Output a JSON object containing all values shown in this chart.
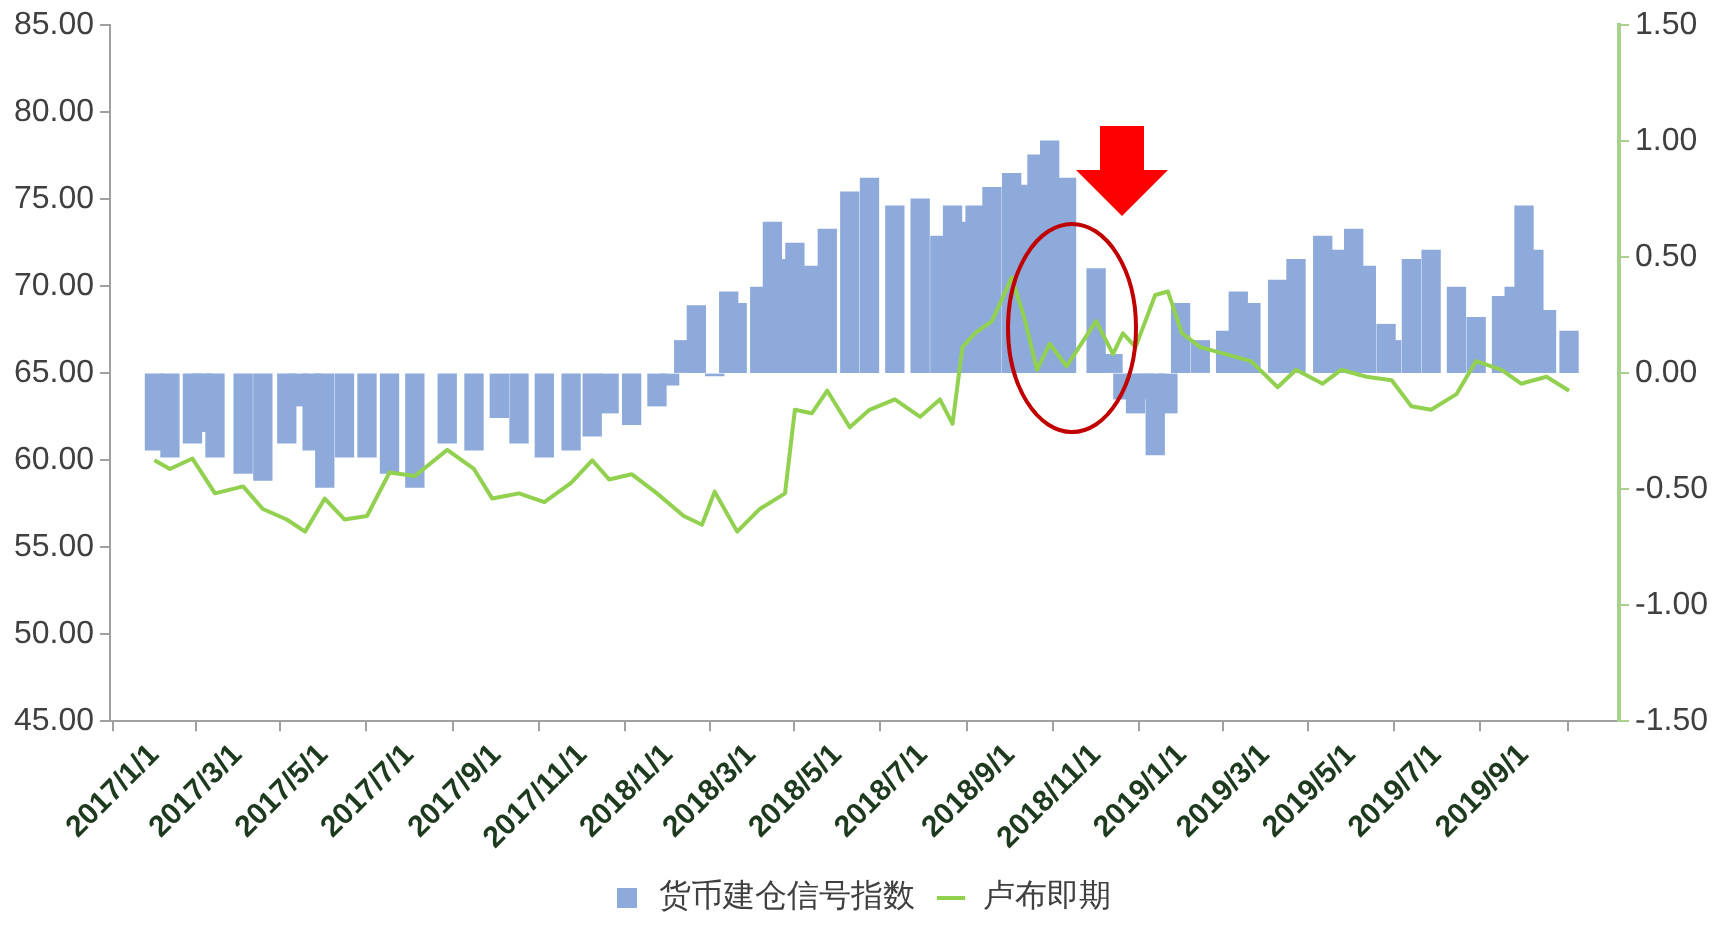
{
  "chart_data": {
    "type": "bar",
    "legend": "bottom",
    "marker": "none",
    "line_style": "solid",
    "grid": false,
    "xlim": [
      "2017-01-01",
      "2019-10-07"
    ],
    "xticks": [
      {
        "value": "2017-01-01",
        "label": "2017/1/1"
      },
      {
        "value": "2017-03-01",
        "label": "2017/3/1"
      },
      {
        "value": "2017-05-01",
        "label": "2017/5/1"
      },
      {
        "value": "2017-07-01",
        "label": "2017/7/1"
      },
      {
        "value": "2017-09-01",
        "label": "2017/9/1"
      },
      {
        "value": "2017-11-01",
        "label": "2017/11/1"
      },
      {
        "value": "2018-01-01",
        "label": "2018/1/1"
      },
      {
        "value": "2018-03-01",
        "label": "2018/3/1"
      },
      {
        "value": "2018-05-01",
        "label": "2018/5/1"
      },
      {
        "value": "2018-07-01",
        "label": "2018/7/1"
      },
      {
        "value": "2018-09-01",
        "label": "2018/9/1"
      },
      {
        "value": "2018-11-01",
        "label": "2018/11/1"
      },
      {
        "value": "2019-01-01",
        "label": "2019/1/1"
      },
      {
        "value": "2019-03-01",
        "label": "2019/3/1"
      },
      {
        "value": "2019-05-01",
        "label": "2019/5/1"
      },
      {
        "value": "2019-07-01",
        "label": "2019/7/1"
      },
      {
        "value": "2019-09-01",
        "label": "2019/9/1"
      }
    ],
    "ylim": [
      45,
      85
    ],
    "yticks": [
      {
        "value": 45,
        "label": "45.00"
      },
      {
        "value": 50,
        "label": "50.00"
      },
      {
        "value": 55,
        "label": "55.00"
      },
      {
        "value": 60,
        "label": "60.00"
      },
      {
        "value": 65,
        "label": "65.00"
      },
      {
        "value": 70,
        "label": "70.00"
      },
      {
        "value": 75,
        "label": "75.00"
      },
      {
        "value": 80,
        "label": "80.00"
      },
      {
        "value": 85,
        "label": "85.00"
      }
    ],
    "y2lim": [
      -1.5,
      1.5
    ],
    "y2ticks": [
      {
        "value": -1.5,
        "label": "-1.50"
      },
      {
        "value": -1,
        "label": "-1.00"
      },
      {
        "value": -0.5,
        "label": "-0.50"
      },
      {
        "value": 0,
        "label": "0.00"
      },
      {
        "value": 0.5,
        "label": "0.50"
      },
      {
        "value": 1,
        "label": "1.00"
      },
      {
        "value": 1.5,
        "label": "1.50"
      }
    ],
    "series": [
      {
        "name": "货币建仓信号指数",
        "axis": "y2",
        "color": "#8eaadb",
        "x": [
          "2017-01-01",
          "2017-01-12",
          "2017-01-28",
          "2017-02-04",
          "2017-02-13",
          "2017-03-05",
          "2017-03-19",
          "2017-04-05",
          "2017-04-13",
          "2017-04-23",
          "2017-05-02",
          "2017-05-16",
          "2017-06-01",
          "2017-06-17",
          "2017-07-05",
          "2017-07-28",
          "2017-08-16",
          "2017-09-03",
          "2017-09-17",
          "2017-10-05",
          "2017-10-24",
          "2017-11-08",
          "2017-11-20",
          "2017-12-06",
          "2017-12-24",
          "2018-01-02",
          "2018-01-12",
          "2018-01-21",
          "2018-02-03",
          "2018-02-13",
          "2018-02-19",
          "2018-03-07",
          "2018-03-16",
          "2018-03-25",
          "2018-04-01",
          "2018-04-13",
          "2018-04-24",
          "2018-05-10",
          "2018-05-24",
          "2018-06-11",
          "2018-06-29",
          "2018-07-13",
          "2018-07-22",
          "2018-07-29",
          "2018-08-07",
          "2018-08-19",
          "2018-09-02",
          "2018-09-11",
          "2018-09-20",
          "2018-09-29",
          "2018-10-11",
          "2018-11-01",
          "2018-11-13",
          "2018-11-20",
          "2018-11-29",
          "2018-12-05",
          "2018-12-13",
          "2018-12-22",
          "2018-12-31",
          "2019-01-14",
          "2019-02-01",
          "2019-02-10",
          "2019-02-19",
          "2019-03-10",
          "2019-03-23",
          "2019-04-11",
          "2019-04-24",
          "2019-05-03",
          "2019-05-12",
          "2019-05-26",
          "2019-05-30",
          "2019-06-13",
          "2019-06-27",
          "2019-07-15",
          "2019-07-29",
          "2019-08-16",
          "2019-08-25",
          "2019-09-01",
          "2019-09-08",
          "2019-09-17",
          "2019-10-03"
        ],
        "values": [
          -0.33,
          -0.36,
          -0.3,
          -0.25,
          -0.36,
          -0.43,
          -0.46,
          -0.3,
          -0.14,
          -0.33,
          -0.49,
          -0.36,
          -0.36,
          -0.43,
          -0.49,
          -0.3,
          -0.33,
          -0.19,
          -0.3,
          -0.36,
          -0.33,
          -0.27,
          -0.17,
          -0.22,
          -0.14,
          -0.05,
          0.14,
          0.29,
          -0.01,
          0.35,
          0.3,
          0.37,
          0.65,
          0.49,
          0.56,
          0.46,
          0.62,
          0.78,
          0.84,
          0.72,
          0.75,
          0.59,
          0.72,
          0.65,
          0.72,
          0.8,
          0.86,
          0.81,
          0.94,
          1.0,
          0.84,
          0.45,
          0.08,
          -0.11,
          -0.17,
          -0.11,
          -0.35,
          -0.17,
          0.3,
          0.14,
          0.18,
          0.35,
          0.3,
          0.4,
          0.49,
          0.59,
          0.53,
          0.62,
          0.46,
          0.21,
          0.14,
          0.49,
          0.53,
          0.37,
          0.24,
          0.33,
          0.37,
          0.72,
          0.53,
          0.27,
          0.18
        ]
      },
      {
        "name": "卢布即期",
        "type": "line",
        "color": "#92d050",
        "x": [
          "2017-01-01",
          "2017-01-12",
          "2017-01-28",
          "2017-02-13",
          "2017-03-05",
          "2017-03-19",
          "2017-04-05",
          "2017-04-18",
          "2017-05-02",
          "2017-05-16",
          "2017-06-01",
          "2017-06-17",
          "2017-07-05",
          "2017-07-28",
          "2017-08-16",
          "2017-08-29",
          "2017-09-17",
          "2017-10-05",
          "2017-10-24",
          "2017-11-08",
          "2017-11-20",
          "2017-12-06",
          "2017-12-24",
          "2018-01-12",
          "2018-01-25",
          "2018-02-03",
          "2018-02-19",
          "2018-03-07",
          "2018-03-25",
          "2018-04-01",
          "2018-04-13",
          "2018-04-24",
          "2018-05-10",
          "2018-05-24",
          "2018-06-11",
          "2018-06-29",
          "2018-07-13",
          "2018-07-22",
          "2018-07-29",
          "2018-08-07",
          "2018-08-19",
          "2018-09-02",
          "2018-09-11",
          "2018-09-20",
          "2018-09-29",
          "2018-10-11",
          "2018-11-01",
          "2018-11-13",
          "2018-11-20",
          "2018-11-29",
          "2018-12-13",
          "2018-12-22",
          "2019-01-01",
          "2019-01-14",
          "2019-02-01",
          "2019-02-19",
          "2019-03-10",
          "2019-03-23",
          "2019-04-11",
          "2019-04-24",
          "2019-05-12",
          "2019-05-30",
          "2019-06-13",
          "2019-06-27",
          "2019-07-15",
          "2019-07-29",
          "2019-08-16",
          "2019-08-30",
          "2019-09-17",
          "2019-10-03"
        ],
        "values": [
          60.0,
          59.5,
          60.1,
          58.1,
          58.5,
          57.2,
          56.6,
          55.9,
          57.8,
          56.6,
          56.8,
          59.3,
          59.1,
          60.6,
          59.5,
          57.8,
          58.1,
          57.6,
          58.7,
          60.0,
          58.9,
          59.2,
          58.1,
          56.8,
          56.3,
          58.2,
          55.9,
          57.2,
          58.1,
          62.9,
          62.7,
          64.0,
          61.9,
          62.9,
          63.5,
          62.5,
          63.5,
          62.1,
          66.5,
          67.3,
          68.0,
          70.5,
          68.2,
          65.2,
          66.7,
          65.4,
          68.0,
          66.1,
          67.3,
          66.5,
          69.5,
          69.7,
          67.3,
          66.5,
          66.1,
          65.7,
          64.2,
          65.2,
          64.4,
          65.2,
          64.8,
          64.6,
          63.1,
          62.9,
          63.8,
          65.7,
          65.2,
          64.4,
          64.8,
          64.0
        ]
      }
    ]
  }
}
